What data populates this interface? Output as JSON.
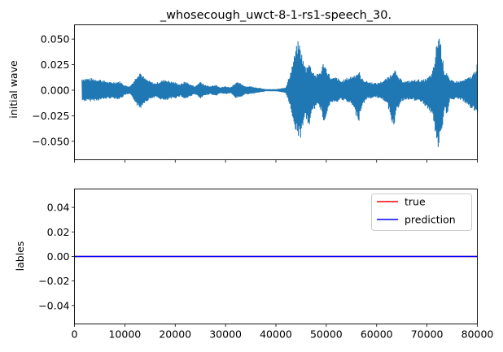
{
  "chart_data": [
    {
      "type": "line",
      "title": "_whosecough_uwct-8-1-rs1-speech_30.",
      "xlabel": "",
      "ylabel": "initial wave",
      "xlim": [
        0,
        80000
      ],
      "ylim": [
        -0.068,
        0.064
      ],
      "x_ticks": [
        0,
        10000,
        20000,
        30000,
        40000,
        50000,
        60000,
        70000,
        80000
      ],
      "x_tick_labels_visible": false,
      "y_ticks": [
        -0.05,
        -0.025,
        0.0,
        0.025,
        0.05
      ],
      "y_tick_labels": [
        "−0.050",
        "−0.025",
        "0.000",
        "0.025",
        "0.050"
      ],
      "grid": false,
      "series": [
        {
          "color": "#1f77b4",
          "envelope": {
            "x": [
              1500,
              3000,
              5000,
              7000,
              9000,
              10000,
              11000,
              12000,
              12500,
              13000,
              13500,
              14000,
              15000,
              16000,
              17000,
              18000,
              19000,
              20000,
              21000,
              22000,
              23000,
              24000,
              25000,
              26000,
              27000,
              28000,
              29000,
              30000,
              31000,
              32000,
              33000,
              34000,
              35000,
              36000,
              37000,
              38000,
              39000,
              40000,
              41000,
              42000,
              43000,
              44000,
              44500,
              45000,
              45500,
              46000,
              46500,
              47000,
              48000,
              49000,
              49500,
              50000,
              51000,
              52000,
              53000,
              54000,
              55000,
              56000,
              56500,
              57000,
              58000,
              59000,
              60000,
              61000,
              62000,
              63000,
              63500,
              64000,
              65000,
              66000,
              67000,
              68000,
              69000,
              70000,
              71000,
              71500,
              72000,
              72500,
              73000,
              73500,
              74000,
              74500,
              75000,
              76000,
              77000,
              78000,
              79000,
              80000
            ],
            "upper": [
              0.012,
              0.012,
              0.011,
              0.008,
              0.009,
              0.005,
              0.004,
              0.011,
              0.016,
              0.019,
              0.015,
              0.012,
              0.009,
              0.007,
              0.009,
              0.011,
              0.009,
              0.008,
              0.006,
              0.009,
              0.006,
              0.004,
              0.009,
              0.005,
              0.004,
              0.006,
              0.003,
              0.004,
              0.003,
              0.008,
              0.007,
              0.004,
              0.004,
              0.003,
              0.002,
              0.001,
              0.001,
              0.001,
              0.002,
              0.003,
              0.02,
              0.042,
              0.05,
              0.039,
              0.028,
              0.022,
              0.03,
              0.022,
              0.015,
              0.02,
              0.029,
              0.022,
              0.012,
              0.013,
              0.009,
              0.012,
              0.014,
              0.017,
              0.019,
              0.012,
              0.009,
              0.008,
              0.007,
              0.009,
              0.012,
              0.017,
              0.023,
              0.015,
              0.01,
              0.009,
              0.01,
              0.011,
              0.01,
              0.012,
              0.017,
              0.028,
              0.05,
              0.057,
              0.035,
              0.018,
              0.019,
              0.01,
              0.01,
              0.009,
              0.01,
              0.012,
              0.015,
              0.026
            ],
            "lower": [
              -0.011,
              -0.011,
              -0.01,
              -0.008,
              -0.009,
              -0.005,
              -0.004,
              -0.011,
              -0.016,
              -0.019,
              -0.015,
              -0.012,
              -0.009,
              -0.007,
              -0.009,
              -0.011,
              -0.009,
              -0.008,
              -0.006,
              -0.009,
              -0.006,
              -0.004,
              -0.009,
              -0.005,
              -0.004,
              -0.006,
              -0.003,
              -0.004,
              -0.003,
              -0.008,
              -0.007,
              -0.004,
              -0.004,
              -0.003,
              -0.002,
              -0.001,
              -0.001,
              -0.001,
              -0.002,
              -0.003,
              -0.02,
              -0.042,
              -0.045,
              -0.048,
              -0.03,
              -0.028,
              -0.038,
              -0.026,
              -0.015,
              -0.02,
              -0.033,
              -0.024,
              -0.012,
              -0.013,
              -0.009,
              -0.012,
              -0.014,
              -0.026,
              -0.03,
              -0.017,
              -0.009,
              -0.008,
              -0.007,
              -0.009,
              -0.012,
              -0.03,
              -0.04,
              -0.02,
              -0.011,
              -0.009,
              -0.01,
              -0.011,
              -0.012,
              -0.018,
              -0.025,
              -0.035,
              -0.062,
              -0.053,
              -0.043,
              -0.02,
              -0.025,
              -0.01,
              -0.01,
              -0.009,
              -0.01,
              -0.015,
              -0.019,
              -0.024
            ]
          }
        }
      ]
    },
    {
      "type": "line",
      "title": "",
      "xlabel": "",
      "ylabel": "lables",
      "xlim": [
        0,
        80000
      ],
      "ylim": [
        -0.055,
        0.055
      ],
      "x_ticks": [
        0,
        10000,
        20000,
        30000,
        40000,
        50000,
        60000,
        70000,
        80000
      ],
      "x_tick_labels": [
        "0",
        "10000",
        "20000",
        "30000",
        "40000",
        "50000",
        "60000",
        "70000",
        "80000"
      ],
      "y_ticks": [
        -0.04,
        -0.02,
        0.0,
        0.02,
        0.04
      ],
      "y_tick_labels": [
        "−0.04",
        "−0.02",
        "0.00",
        "0.02",
        "0.04"
      ],
      "grid": false,
      "legend_position": "top-right",
      "series": [
        {
          "name": "true",
          "color": "#ff0000",
          "x": [
            0,
            80000
          ],
          "y": [
            0,
            0
          ]
        },
        {
          "name": "prediction",
          "color": "#0000ff",
          "x": [
            0,
            80000
          ],
          "y": [
            0,
            0
          ]
        }
      ]
    }
  ]
}
